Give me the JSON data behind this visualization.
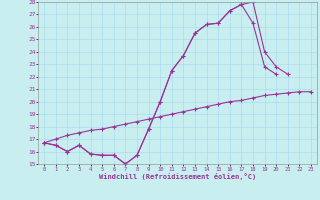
{
  "bg_color": "#c8eef0",
  "line_color": "#993399",
  "grid_color": "#aaddee",
  "xlabel": "Windchill (Refroidissement éolien,°C)",
  "xlim": [
    -0.5,
    23.5
  ],
  "ylim": [
    15,
    28
  ],
  "xticks": [
    0,
    1,
    2,
    3,
    4,
    5,
    6,
    7,
    8,
    9,
    10,
    11,
    12,
    13,
    14,
    15,
    16,
    17,
    18,
    19,
    20,
    21,
    22,
    23
  ],
  "yticks": [
    15,
    16,
    17,
    18,
    19,
    20,
    21,
    22,
    23,
    24,
    25,
    26,
    27,
    28
  ],
  "line1_x": [
    0,
    1,
    2,
    3,
    4,
    5,
    6,
    7,
    8,
    9,
    10,
    11,
    12,
    13,
    14,
    15,
    16,
    17,
    18,
    19,
    20,
    21
  ],
  "line1_y": [
    16.7,
    16.5,
    16.0,
    16.5,
    15.8,
    15.7,
    15.7,
    15.0,
    15.7,
    17.8,
    20.0,
    22.5,
    23.7,
    25.5,
    26.2,
    26.3,
    27.3,
    27.8,
    28.0,
    24.0,
    22.8,
    22.2
  ],
  "line2_x": [
    0,
    1,
    2,
    3,
    4,
    5,
    6,
    7,
    8,
    9,
    10,
    11,
    12,
    13,
    14,
    15,
    16,
    17,
    18,
    19,
    20
  ],
  "line2_y": [
    16.7,
    16.5,
    16.0,
    16.5,
    15.8,
    15.7,
    15.7,
    15.0,
    15.7,
    17.8,
    20.0,
    22.5,
    23.7,
    25.5,
    26.2,
    26.3,
    27.3,
    27.8,
    26.3,
    22.8,
    22.2
  ],
  "line3_x": [
    0,
    1,
    2,
    3,
    4,
    5,
    6,
    7,
    8,
    9,
    10,
    11,
    12,
    13,
    14,
    15,
    16,
    17,
    18,
    19,
    20,
    21,
    22,
    23
  ],
  "line3_y": [
    16.7,
    17.0,
    17.3,
    17.5,
    17.7,
    17.8,
    18.0,
    18.2,
    18.4,
    18.6,
    18.8,
    19.0,
    19.2,
    19.4,
    19.6,
    19.8,
    20.0,
    20.1,
    20.3,
    20.5,
    20.6,
    20.7,
    20.8,
    20.8
  ]
}
